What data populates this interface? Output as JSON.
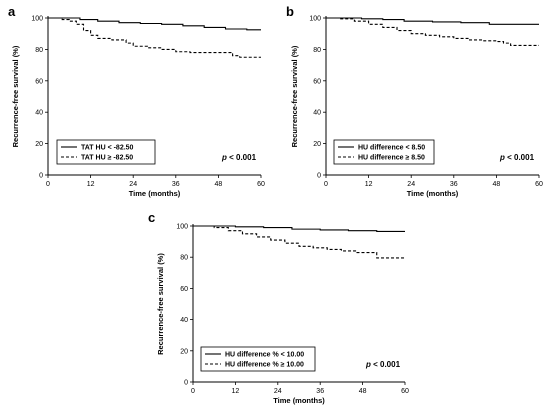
{
  "chart_data": [
    {
      "type": "line",
      "panel": "a",
      "xlabel": "Time (months)",
      "ylabel": "Recurrence-free survival (%)",
      "xlim": [
        0,
        60
      ],
      "ylim": [
        0,
        100
      ],
      "xticks": [
        0,
        12,
        24,
        36,
        48,
        60
      ],
      "yticks": [
        0,
        20,
        40,
        60,
        80,
        100
      ],
      "annotation_prefix": "p",
      "annotation": "< 0.001",
      "legend": "bottom-left",
      "series": [
        {
          "name": "TAT HU < -82.50",
          "style": "solid",
          "points": [
            [
              0,
              100
            ],
            [
              6,
              100
            ],
            [
              9,
              99
            ],
            [
              14,
              98
            ],
            [
              20,
              97
            ],
            [
              26,
              96.5
            ],
            [
              32,
              96
            ],
            [
              38,
              95
            ],
            [
              44,
              94
            ],
            [
              50,
              93
            ],
            [
              56,
              92.5
            ],
            [
              60,
              92.5
            ]
          ]
        },
        {
          "name": "TAT HU ≥ -82.50",
          "style": "dashed",
          "points": [
            [
              0,
              100
            ],
            [
              4,
              99
            ],
            [
              6,
              98
            ],
            [
              8,
              96
            ],
            [
              10,
              92
            ],
            [
              12,
              89
            ],
            [
              14,
              87
            ],
            [
              18,
              86
            ],
            [
              22,
              84
            ],
            [
              24,
              82
            ],
            [
              28,
              81
            ],
            [
              32,
              80
            ],
            [
              36,
              78.5
            ],
            [
              40,
              78
            ],
            [
              48,
              78
            ],
            [
              52,
              76
            ],
            [
              54,
              75
            ],
            [
              60,
              75
            ]
          ]
        }
      ]
    },
    {
      "type": "line",
      "panel": "b",
      "xlabel": "Time (months)",
      "ylabel": "Recurrence-free survival (%)",
      "xlim": [
        0,
        60
      ],
      "ylim": [
        0,
        100
      ],
      "xticks": [
        0,
        12,
        24,
        36,
        48,
        60
      ],
      "yticks": [
        0,
        20,
        40,
        60,
        80,
        100
      ],
      "annotation_prefix": "p",
      "annotation": "< 0.001",
      "legend": "bottom-left",
      "series": [
        {
          "name": "HU difference < 8.50",
          "style": "solid",
          "points": [
            [
              0,
              100
            ],
            [
              6,
              100
            ],
            [
              10,
              99.5
            ],
            [
              16,
              99
            ],
            [
              22,
              98
            ],
            [
              30,
              97.5
            ],
            [
              38,
              97
            ],
            [
              46,
              96
            ],
            [
              54,
              96
            ],
            [
              60,
              96
            ]
          ]
        },
        {
          "name": "HU difference ≥ 8.50",
          "style": "dashed",
          "points": [
            [
              0,
              100
            ],
            [
              4,
              99.5
            ],
            [
              8,
              98
            ],
            [
              12,
              96
            ],
            [
              16,
              94
            ],
            [
              20,
              92
            ],
            [
              24,
              90
            ],
            [
              28,
              89
            ],
            [
              32,
              88
            ],
            [
              36,
              87
            ],
            [
              40,
              86
            ],
            [
              44,
              85.5
            ],
            [
              48,
              85
            ],
            [
              50,
              84
            ],
            [
              52,
              82.5
            ],
            [
              60,
              82.5
            ]
          ]
        }
      ]
    },
    {
      "type": "line",
      "panel": "c",
      "xlabel": "Time (months)",
      "ylabel": "Recurrence-free survival (%)",
      "xlim": [
        0,
        60
      ],
      "ylim": [
        0,
        100
      ],
      "xticks": [
        0,
        12,
        24,
        36,
        48,
        60
      ],
      "yticks": [
        0,
        20,
        40,
        60,
        80,
        100
      ],
      "annotation_prefix": "p",
      "annotation": "< 0.001",
      "legend": "bottom-left",
      "series": [
        {
          "name": "HU difference % < 10.00",
          "style": "solid",
          "points": [
            [
              0,
              100
            ],
            [
              8,
              100
            ],
            [
              12,
              99.5
            ],
            [
              20,
              99
            ],
            [
              28,
              98
            ],
            [
              36,
              97.5
            ],
            [
              44,
              97
            ],
            [
              52,
              96.5
            ],
            [
              60,
              96.5
            ]
          ]
        },
        {
          "name": "HU difference % ≥ 10.00",
          "style": "dashed",
          "points": [
            [
              0,
              100
            ],
            [
              6,
              99
            ],
            [
              10,
              97
            ],
            [
              14,
              95
            ],
            [
              18,
              93
            ],
            [
              22,
              91
            ],
            [
              26,
              89
            ],
            [
              30,
              87
            ],
            [
              34,
              86
            ],
            [
              38,
              85
            ],
            [
              42,
              84
            ],
            [
              46,
              83
            ],
            [
              50,
              83
            ],
            [
              52,
              79.5
            ],
            [
              60,
              79.5
            ]
          ]
        }
      ]
    }
  ]
}
